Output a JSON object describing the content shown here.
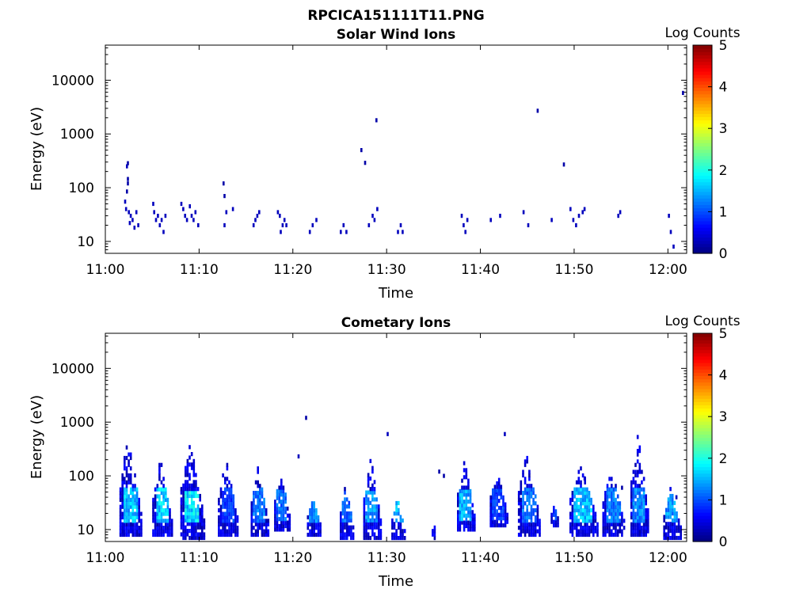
{
  "title": "RPCICA151111T11.PNG",
  "chart_data": [
    {
      "type": "heatmap",
      "title": "Solar Wind Ions",
      "xlabel": "Time",
      "ylabel": "Energy (eV)",
      "x_ticks": [
        "11:00",
        "11:10",
        "11:20",
        "11:30",
        "11:40",
        "11:50",
        "12:00"
      ],
      "xlim": [
        "11:00",
        "12:02"
      ],
      "y_scale": "log",
      "y_ticks": [
        "10",
        "100",
        "1000",
        "10000"
      ],
      "ylim": [
        6,
        45000
      ],
      "colorbar": {
        "label": "Log Counts",
        "ticks": [
          "0",
          "1",
          "2",
          "3",
          "4",
          "5"
        ],
        "range": [
          0,
          5
        ]
      },
      "points": [
        [
          "11:02.0",
          55,
          0.3
        ],
        [
          "11:02.2",
          85,
          0.2
        ],
        [
          "11:02.3",
          120,
          0.2
        ],
        [
          "11:02.3",
          145,
          0.2
        ],
        [
          "11:02.2",
          250,
          0.3
        ],
        [
          "11:02.3",
          285,
          0.2
        ],
        [
          "11:02.1",
          40,
          0.3
        ],
        [
          "11:02.4",
          35,
          0.3
        ],
        [
          "11:02.6",
          30,
          0.3
        ],
        [
          "11:02.5",
          22,
          0.3
        ],
        [
          "11:02.8",
          25,
          0.3
        ],
        [
          "11:03.0",
          18,
          0.3
        ],
        [
          "11:03.2",
          35,
          0.3
        ],
        [
          "11:03.4",
          20,
          0.3
        ],
        [
          "11:05.0",
          50,
          0.3
        ],
        [
          "11:05.1",
          35,
          0.3
        ],
        [
          "11:05.3",
          25,
          0.3
        ],
        [
          "11:05.5",
          30,
          0.3
        ],
        [
          "11:05.7",
          20,
          0.3
        ],
        [
          "11:05.9",
          25,
          0.3
        ],
        [
          "11:06.1",
          15,
          0.3
        ],
        [
          "11:06.3",
          30,
          0.3
        ],
        [
          "11:08.0",
          50,
          0.3
        ],
        [
          "11:08.2",
          40,
          0.3
        ],
        [
          "11:08.4",
          30,
          0.3
        ],
        [
          "11:08.6",
          25,
          0.3
        ],
        [
          "11:08.9",
          45,
          0.3
        ],
        [
          "11:09.1",
          30,
          0.3
        ],
        [
          "11:09.3",
          25,
          0.3
        ],
        [
          "11:09.5",
          35,
          0.3
        ],
        [
          "11:09.8",
          20,
          0.3
        ],
        [
          "11:12.5",
          120,
          0.2
        ],
        [
          "11:12.6",
          70,
          0.2
        ],
        [
          "11:12.8",
          35,
          0.3
        ],
        [
          "11:13.5",
          40,
          0.3
        ],
        [
          "11:12.6",
          20,
          0.3
        ],
        [
          "11:15.7",
          20,
          0.3
        ],
        [
          "11:15.9",
          25,
          0.3
        ],
        [
          "11:16.1",
          30,
          0.3
        ],
        [
          "11:16.3",
          35,
          0.3
        ],
        [
          "11:18.3",
          35,
          0.3
        ],
        [
          "11:18.5",
          30,
          0.3
        ],
        [
          "11:18.6",
          15,
          0.3
        ],
        [
          "11:18.8",
          20,
          0.3
        ],
        [
          "11:19.0",
          25,
          0.3
        ],
        [
          "11:19.2",
          20,
          0.3
        ],
        [
          "11:21.7",
          15,
          0.3
        ],
        [
          "11:22.0",
          20,
          0.3
        ],
        [
          "11:22.4",
          25,
          0.3
        ],
        [
          "11:25.0",
          15,
          0.3
        ],
        [
          "11:25.3",
          20,
          0.3
        ],
        [
          "11:25.6",
          15,
          0.3
        ],
        [
          "11:27.2",
          500,
          0.2
        ],
        [
          "11:27.6",
          290,
          0.2
        ],
        [
          "11:28.0",
          20,
          0.3
        ],
        [
          "11:28.4",
          30,
          0.3
        ],
        [
          "11:28.6",
          25,
          0.3
        ],
        [
          "11:28.8",
          1800,
          0.2
        ],
        [
          "11:28.9",
          40,
          0.3
        ],
        [
          "11:31.1",
          15,
          0.3
        ],
        [
          "11:31.4",
          20,
          0.3
        ],
        [
          "11:31.6",
          15,
          0.3
        ],
        [
          "11:37.9",
          30,
          0.3
        ],
        [
          "11:38.1",
          20,
          0.3
        ],
        [
          "11:38.3",
          15,
          0.3
        ],
        [
          "11:38.5",
          25,
          0.3
        ],
        [
          "11:41.0",
          25,
          0.3
        ],
        [
          "11:42.0",
          30,
          0.3
        ],
        [
          "11:44.5",
          35,
          0.3
        ],
        [
          "11:45.0",
          20,
          0.3
        ],
        [
          "11:46.0",
          2700,
          0.2
        ],
        [
          "11:47.5",
          25,
          0.3
        ],
        [
          "11:48.8",
          270,
          0.2
        ],
        [
          "11:49.5",
          40,
          0.3
        ],
        [
          "11:49.8",
          25,
          0.3
        ],
        [
          "11:50.1",
          20,
          0.3
        ],
        [
          "11:50.4",
          30,
          0.3
        ],
        [
          "11:50.8",
          35,
          0.3
        ],
        [
          "11:51.0",
          40,
          0.3
        ],
        [
          "11:54.6",
          30,
          0.3
        ],
        [
          "11:54.8",
          35,
          0.3
        ],
        [
          "12:00.0",
          30,
          0.3
        ],
        [
          "12:00.2",
          15,
          0.3
        ],
        [
          "12:00.5",
          8,
          0.3
        ],
        [
          "12:01.5",
          5800,
          0.2
        ]
      ]
    },
    {
      "type": "heatmap",
      "title": "Cometary Ions",
      "xlabel": "Time",
      "ylabel": "Energy (eV)",
      "x_ticks": [
        "11:00",
        "11:10",
        "11:20",
        "11:30",
        "11:40",
        "11:50",
        "12:00"
      ],
      "xlim": [
        "11:00",
        "12:02"
      ],
      "y_scale": "log",
      "y_ticks": [
        "10",
        "100",
        "1000",
        "10000"
      ],
      "ylim": [
        6,
        45000
      ],
      "colorbar": {
        "label": "Log Counts",
        "ticks": [
          "0",
          "1",
          "2",
          "3",
          "4",
          "5"
        ],
        "range": [
          0,
          5
        ]
      },
      "bursts": [
        {
          "t": "11:01.5",
          "w": 2.5,
          "emin": 8,
          "emax": 650,
          "core": 1.7
        },
        {
          "t": "11:05.0",
          "w": 2.3,
          "emin": 8,
          "emax": 200,
          "core": 1.8
        },
        {
          "t": "11:08.0",
          "w": 2.6,
          "emin": 7,
          "emax": 500,
          "core": 1.9
        },
        {
          "t": "11:12.0",
          "w": 2.2,
          "emin": 8,
          "emax": 230,
          "core": 1.0
        },
        {
          "t": "11:15.5",
          "w": 2.0,
          "emin": 8,
          "emax": 150,
          "core": 1.3
        },
        {
          "t": "11:18.0",
          "w": 1.8,
          "emin": 10,
          "emax": 120,
          "core": 1.2
        },
        {
          "t": "11:21.5",
          "w": 1.5,
          "emin": 8,
          "emax": 40,
          "core": 1.4
        },
        {
          "t": "11:25.0",
          "w": 1.5,
          "emin": 7,
          "emax": 70,
          "core": 1.2
        },
        {
          "t": "11:27.5",
          "w": 2.0,
          "emin": 7,
          "emax": 230,
          "core": 1.5
        },
        {
          "t": "11:30.5",
          "w": 1.5,
          "emin": 6,
          "emax": 40,
          "core": 1.6
        },
        {
          "t": "11:34.8",
          "w": 0.4,
          "emin": 6,
          "emax": 15,
          "core": 1.2
        },
        {
          "t": "11:37.5",
          "w": 2.0,
          "emin": 10,
          "emax": 200,
          "core": 1.6
        },
        {
          "t": "11:41.0",
          "w": 2.0,
          "emin": 12,
          "emax": 130,
          "core": 1.0
        },
        {
          "t": "11:44.0",
          "w": 2.5,
          "emin": 8,
          "emax": 300,
          "core": 1.3
        },
        {
          "t": "11:47.5",
          "w": 0.8,
          "emin": 12,
          "emax": 30,
          "core": 1.0
        },
        {
          "t": "11:49.5",
          "w": 3.0,
          "emin": 8,
          "emax": 180,
          "core": 1.7
        },
        {
          "t": "11:53.0",
          "w": 2.5,
          "emin": 8,
          "emax": 150,
          "core": 1.3
        },
        {
          "t": "11:56.0",
          "w": 2.0,
          "emin": 8,
          "emax": 680,
          "core": 1.4
        },
        {
          "t": "11:59.5",
          "w": 2.0,
          "emin": 7,
          "emax": 60,
          "core": 1.5
        }
      ],
      "extra_points": [
        [
          "11:21.3",
          1200,
          0.2
        ],
        [
          "11:20.5",
          230,
          0.3
        ],
        [
          "11:30.0",
          600,
          0.3
        ],
        [
          "11:36.0",
          100,
          0.2
        ],
        [
          "11:41.5",
          50,
          0.2
        ],
        [
          "11:35.5",
          120,
          0.2
        ],
        [
          "11:42.5",
          600,
          0.3
        ],
        [
          "11:51.0",
          90,
          0.3
        ],
        [
          "11:55.0",
          60,
          0.2
        ],
        [
          "12:00.8",
          40,
          0.3
        ]
      ]
    }
  ]
}
